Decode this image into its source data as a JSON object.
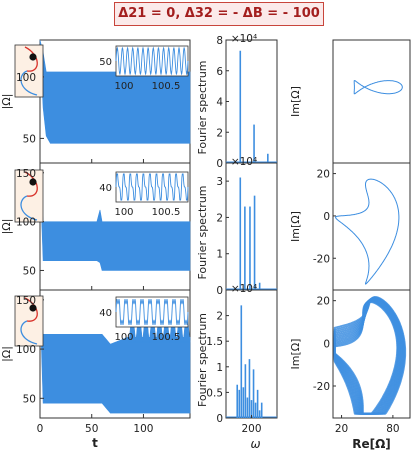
{
  "title": "Δ21 = 0, Δ32 = - ΔB = - 100",
  "colors": {
    "series": "#3d8ee0",
    "title_border": "#c8453c",
    "title_text": "#a31e1e",
    "dot": "#111111",
    "inset_red": "#d8322a",
    "inset_bg": "#fdf0e4"
  },
  "chart_data": [
    {
      "type": "line",
      "panel": "time-series-1",
      "ylabel": "|Ω|",
      "ylim": [
        30,
        130
      ],
      "yticks": [
        "50",
        "100"
      ],
      "xlim": [
        0,
        145
      ],
      "xticks": [
        "0",
        "50",
        "100"
      ],
      "envelope": {
        "x": [
          0,
          3,
          6,
          10,
          145
        ],
        "lower": [
          130,
          75,
          52,
          46,
          46
        ],
        "upper": [
          130,
          120,
          104,
          104,
          104
        ]
      },
      "zoom_inset": {
        "xticks": [
          "100",
          "100.5"
        ],
        "yticks": [
          "50"
        ],
        "ylim": [
          35,
          90
        ],
        "oscillations": 14
      }
    },
    {
      "type": "line",
      "panel": "time-series-2",
      "ylabel": "|Ω|",
      "ylim": [
        30,
        160
      ],
      "yticks": [
        "50",
        "100",
        "150"
      ],
      "xlim": [
        0,
        145
      ],
      "xticks": [
        "0",
        "50",
        "100"
      ],
      "envelope": {
        "x": [
          0,
          3,
          10,
          55,
          58,
          60,
          145
        ],
        "lower": [
          150,
          60,
          60,
          60,
          58,
          50,
          50
        ],
        "upper": [
          150,
          100,
          100,
          100,
          112,
          100,
          100
        ]
      },
      "zoom_inset": {
        "xticks": [
          "100",
          "100.5"
        ],
        "yticks": [
          "40"
        ],
        "ylim": [
          30,
          60
        ],
        "oscillations": 11
      }
    },
    {
      "type": "line",
      "panel": "time-series-3",
      "ylabel": "|Ω|",
      "ylim": [
        30,
        160
      ],
      "yticks": [
        "50",
        "100",
        "150"
      ],
      "xlim": [
        0,
        145
      ],
      "xticks": [
        "0",
        "50",
        "100"
      ],
      "xlabel": "t",
      "envelope": {
        "x": [
          0,
          3,
          10,
          60,
          68,
          85,
          145
        ],
        "lower": [
          150,
          45,
          45,
          45,
          35,
          35,
          35
        ],
        "upper": [
          150,
          115,
          115,
          115,
          105,
          112,
          112
        ]
      },
      "pulses": {
        "start": 86,
        "end": 145,
        "count": 9,
        "peak": 132
      },
      "zoom_inset": {
        "xticks": [
          "100",
          "100.5"
        ],
        "yticks": [
          "40"
        ],
        "ylim": [
          30,
          55
        ],
        "oscillations": 9
      }
    },
    {
      "type": "bar",
      "panel": "spectrum-1",
      "ylabel": "Fourier spectrum",
      "exponent": "×10⁴",
      "ylim": [
        0,
        8
      ],
      "yticks": [
        "0",
        "2",
        "4",
        "6",
        "8"
      ],
      "xlim": [
        150,
        250
      ],
      "peaks": [
        {
          "x": 178,
          "y": 7.3
        },
        {
          "x": 205,
          "y": 2.5
        },
        {
          "x": 232,
          "y": 0.6
        }
      ]
    },
    {
      "type": "bar",
      "panel": "spectrum-2",
      "ylabel": "Fourier spectrum",
      "exponent": "×10⁴",
      "ylim": [
        0,
        3.5
      ],
      "yticks": [
        "0",
        "1",
        "2",
        "3"
      ],
      "xlim": [
        150,
        250
      ],
      "peaks": [
        {
          "x": 178,
          "y": 3.1
        },
        {
          "x": 187,
          "y": 2.3
        },
        {
          "x": 197,
          "y": 2.3
        },
        {
          "x": 206,
          "y": 2.6
        },
        {
          "x": 216,
          "y": 0.2
        }
      ]
    },
    {
      "type": "bar",
      "panel": "spectrum-3",
      "ylabel": "Fourier spectrum",
      "exponent": "×10⁴",
      "ylim": [
        0,
        2.5
      ],
      "yticks": [
        "0",
        "0.5",
        "1",
        "1.5",
        "2"
      ],
      "xlim": [
        150,
        250
      ],
      "xticks": [
        "200"
      ],
      "xlabel": "ω",
      "peaks": [
        {
          "x": 172,
          "y": 0.65
        },
        {
          "x": 176,
          "y": 0.55
        },
        {
          "x": 180,
          "y": 2.2
        },
        {
          "x": 184,
          "y": 0.6
        },
        {
          "x": 188,
          "y": 1.05
        },
        {
          "x": 192,
          "y": 0.4
        },
        {
          "x": 196,
          "y": 1.15
        },
        {
          "x": 200,
          "y": 0.35
        },
        {
          "x": 204,
          "y": 0.95
        },
        {
          "x": 208,
          "y": 0.3
        },
        {
          "x": 212,
          "y": 0.55
        },
        {
          "x": 216,
          "y": 0.15
        },
        {
          "x": 220,
          "y": 0.3
        }
      ]
    },
    {
      "type": "line",
      "panel": "phase-1",
      "ylabel": "Im[Ω]",
      "xlim": [
        10,
        100
      ],
      "ylim": [
        -35,
        25
      ]
    },
    {
      "type": "line",
      "panel": "phase-2",
      "ylabel": "Im[Ω]",
      "xlim": [
        10,
        100
      ],
      "ylim": [
        -35,
        25
      ],
      "yticks": [
        "20",
        "0",
        "-20"
      ]
    },
    {
      "type": "line",
      "panel": "phase-3",
      "ylabel": "Im[Ω]",
      "xlabel": "Re[Ω]",
      "xlim": [
        10,
        100
      ],
      "ylim": [
        -35,
        25
      ],
      "xticks": [
        "20",
        "80"
      ],
      "yticks": [
        "20",
        "0",
        "-20"
      ]
    }
  ]
}
